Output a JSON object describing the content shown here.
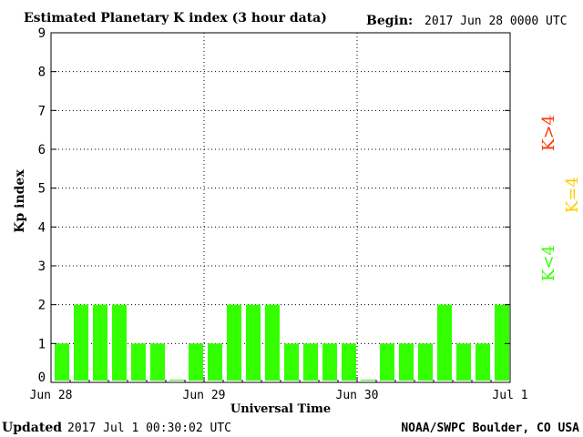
{
  "header": {
    "title": "Estimated Planetary K index (3 hour data)",
    "begin_label": "Begin:",
    "begin_value": "2017 Jun 28 0000 UTC"
  },
  "footer": {
    "updated_label": "Updated",
    "updated_value": "2017 Jul  1 00:30:02 UTC",
    "source": "NOAA/SWPC Boulder, CO USA"
  },
  "legend": {
    "above": "K>4",
    "equal": "K=4",
    "below": "K<4"
  },
  "colors": {
    "below4": "#33ff00",
    "equal4": "#ffcc00",
    "above4": "#ff3300",
    "grid": "#000000"
  },
  "chart_data": {
    "type": "bar",
    "title": "Estimated Planetary K index (3 hour data)",
    "xlabel": "Universal Time",
    "ylabel": "Kp index",
    "ylim": [
      0,
      9
    ],
    "yticks": [
      0,
      1,
      2,
      3,
      4,
      5,
      6,
      7,
      8,
      9
    ],
    "xticks": [
      "Jun 28",
      "Jun 29",
      "Jun 30",
      "Jul 1"
    ],
    "grid": true,
    "interval_hours": 3,
    "values": [
      1,
      2,
      2,
      2,
      1,
      1,
      0,
      1,
      1,
      2,
      2,
      2,
      1,
      1,
      1,
      1,
      0,
      1,
      1,
      1,
      2,
      1,
      1,
      2
    ]
  }
}
